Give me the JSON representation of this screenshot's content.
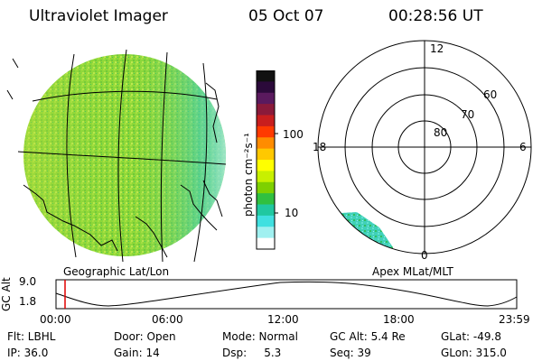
{
  "header": {
    "title": "Ultraviolet Imager",
    "date": "05 Oct 07",
    "time": "00:28:56 UT"
  },
  "colorbar": {
    "unit_label": "photon cm⁻²s⁻¹",
    "ticks": [
      "100",
      "10"
    ],
    "ticks_values": [
      100,
      10
    ],
    "colors": [
      "#111111",
      "#2b0a3a",
      "#5a1a5e",
      "#8a1a3a",
      "#c81e1e",
      "#ff3a00",
      "#ff8c00",
      "#ffc800",
      "#ffff00",
      "#c8f000",
      "#7ed000",
      "#30c040",
      "#20c8a0",
      "#40e0e0",
      "#a0f0f0",
      "#ffffff"
    ]
  },
  "left_panel": {
    "caption": "Geographic Lat/Lon"
  },
  "right_panel": {
    "caption": "Apex MLat/MLT",
    "mlt_labels": {
      "top": "12",
      "left": "18",
      "right": "6",
      "bottom": "0"
    },
    "mlat_labels": [
      "60",
      "70",
      "80"
    ]
  },
  "altitude_plot": {
    "ylabel": "GC Alt",
    "yticks": [
      "9.0",
      "1.8"
    ],
    "xticks": [
      "00:00",
      "06:00",
      "12:00",
      "18:00",
      "23:59"
    ],
    "marker_time": "00:28:56"
  },
  "info": {
    "row1": [
      "Flt: LBHL",
      "Door: Open",
      "Mode: Normal",
      "GC Alt: 5.4 Re",
      "GLat: -49.8"
    ],
    "row2": [
      "IP: 36.0",
      "Gain: 14",
      "Dsp:     5.3",
      "Seq: 39",
      "GLon: 315.0"
    ]
  },
  "colors": {
    "marker": "#e00000",
    "text": "#000000"
  }
}
